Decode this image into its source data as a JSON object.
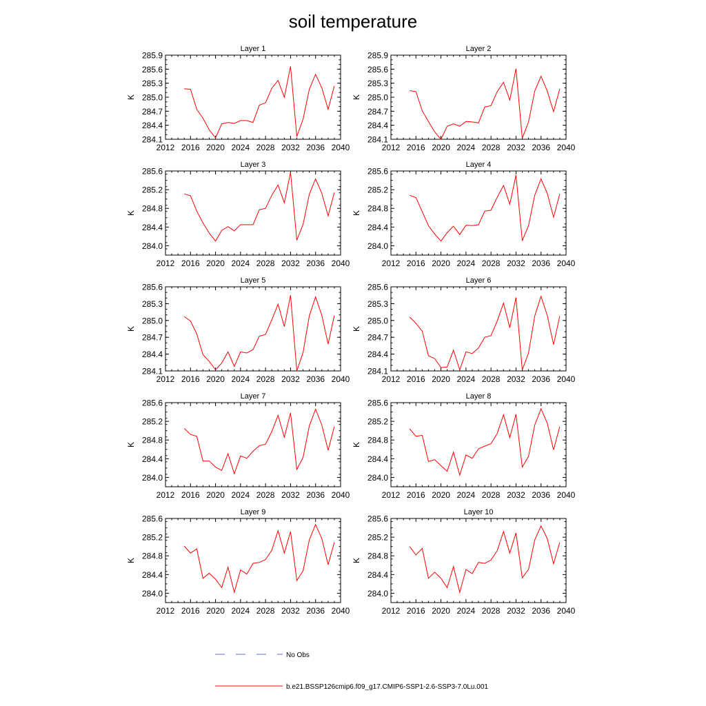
{
  "title": "soil temperature",
  "legend": {
    "obs_label": "No Obs",
    "obs_color": "#5a6fd6",
    "model_label": "b.e21.BSSP126cmip6.f09_g17.CMIP6-SSP1-2.6-SSP3-7.0Lu.001",
    "model_color": "#ff0000"
  },
  "chart_data": [
    {
      "type": "line",
      "title": "Layer 1",
      "ylabel": "K",
      "xlim": [
        2012,
        2040
      ],
      "xticks": [
        "2012",
        "2016",
        "2020",
        "2024",
        "2028",
        "2032",
        "2036",
        "2040"
      ],
      "ylim": [
        284.1,
        285.9
      ],
      "yticks": [
        "284.1",
        "284.4",
        "284.7",
        "285.0",
        "285.3",
        "285.6",
        "285.9"
      ],
      "series": [
        {
          "color": "#ff0000",
          "x": [
            2015,
            2016,
            2017,
            2018,
            2019,
            2020,
            2021,
            2022,
            2023,
            2024,
            2025,
            2026,
            2027,
            2028,
            2029,
            2030,
            2031,
            2032,
            2033,
            2034,
            2035,
            2036,
            2037,
            2038,
            2039
          ],
          "values": [
            285.18,
            285.17,
            284.74,
            284.55,
            284.3,
            284.13,
            284.43,
            284.46,
            284.44,
            284.5,
            284.5,
            284.46,
            284.83,
            284.88,
            285.19,
            285.36,
            285.0,
            285.66,
            284.16,
            284.53,
            285.17,
            285.49,
            285.2,
            284.74,
            285.24
          ]
        }
      ]
    },
    {
      "type": "line",
      "title": "Layer 2",
      "ylabel": "K",
      "xlim": [
        2012,
        2040
      ],
      "xticks": [
        "2012",
        "2016",
        "2020",
        "2024",
        "2028",
        "2032",
        "2036",
        "2040"
      ],
      "ylim": [
        284.1,
        285.9
      ],
      "yticks": [
        "284.1",
        "284.4",
        "284.7",
        "285.0",
        "285.3",
        "285.6",
        "285.9"
      ],
      "series": [
        {
          "color": "#ff0000",
          "x": [
            2015,
            2016,
            2017,
            2018,
            2019,
            2020,
            2021,
            2022,
            2023,
            2024,
            2025,
            2026,
            2027,
            2028,
            2029,
            2030,
            2031,
            2032,
            2033,
            2034,
            2035,
            2036,
            2037,
            2038,
            2039
          ],
          "values": [
            285.14,
            285.12,
            284.71,
            284.48,
            284.26,
            284.1,
            284.38,
            284.43,
            284.38,
            284.48,
            284.47,
            284.45,
            284.79,
            284.82,
            285.12,
            285.32,
            284.94,
            285.61,
            284.12,
            284.47,
            285.13,
            285.45,
            285.13,
            284.69,
            285.18
          ]
        }
      ]
    },
    {
      "type": "line",
      "title": "Layer 3",
      "ylabel": "K",
      "xlim": [
        2012,
        2040
      ],
      "xticks": [
        "2012",
        "2016",
        "2020",
        "2024",
        "2028",
        "2032",
        "2036",
        "2040"
      ],
      "ylim": [
        283.8,
        285.6
      ],
      "yticks": [
        "284.0",
        "284.4",
        "284.8",
        "285.2",
        "285.6"
      ],
      "series": [
        {
          "color": "#ff0000",
          "x": [
            2015,
            2016,
            2017,
            2018,
            2019,
            2020,
            2021,
            2022,
            2023,
            2024,
            2025,
            2026,
            2027,
            2028,
            2029,
            2030,
            2031,
            2032,
            2033,
            2034,
            2035,
            2036,
            2037,
            2038,
            2039
          ],
          "values": [
            285.11,
            285.07,
            284.74,
            284.49,
            284.27,
            284.1,
            284.33,
            284.41,
            284.32,
            284.45,
            284.45,
            284.45,
            284.77,
            284.8,
            285.08,
            285.3,
            284.92,
            285.57,
            284.12,
            284.46,
            285.1,
            285.43,
            285.12,
            284.64,
            285.14
          ]
        }
      ]
    },
    {
      "type": "line",
      "title": "Layer 4",
      "ylabel": "K",
      "xlim": [
        2012,
        2040
      ],
      "xticks": [
        "2012",
        "2016",
        "2020",
        "2024",
        "2028",
        "2032",
        "2036",
        "2040"
      ],
      "ylim": [
        283.8,
        285.6
      ],
      "yticks": [
        "284.0",
        "284.4",
        "284.8",
        "285.2",
        "285.6"
      ],
      "series": [
        {
          "color": "#ff0000",
          "x": [
            2015,
            2016,
            2017,
            2018,
            2019,
            2020,
            2021,
            2022,
            2023,
            2024,
            2025,
            2026,
            2027,
            2028,
            2029,
            2030,
            2031,
            2032,
            2033,
            2034,
            2035,
            2036,
            2037,
            2038,
            2039
          ],
          "values": [
            285.08,
            285.03,
            284.73,
            284.43,
            284.25,
            284.1,
            284.28,
            284.42,
            284.24,
            284.44,
            284.43,
            284.45,
            284.74,
            284.76,
            285.04,
            285.29,
            284.89,
            285.51,
            284.11,
            284.43,
            285.08,
            285.43,
            285.12,
            284.61,
            285.11
          ]
        }
      ]
    },
    {
      "type": "line",
      "title": "Layer 5",
      "ylabel": "K",
      "xlim": [
        2012,
        2040
      ],
      "xticks": [
        "2012",
        "2016",
        "2020",
        "2024",
        "2028",
        "2032",
        "2036",
        "2040"
      ],
      "ylim": [
        284.1,
        285.6
      ],
      "yticks": [
        "284.1",
        "284.4",
        "284.7",
        "285.0",
        "285.3",
        "285.6"
      ],
      "series": [
        {
          "color": "#ff0000",
          "x": [
            2015,
            2016,
            2017,
            2018,
            2019,
            2020,
            2021,
            2022,
            2023,
            2024,
            2025,
            2026,
            2027,
            2028,
            2029,
            2030,
            2031,
            2032,
            2033,
            2034,
            2035,
            2036,
            2037,
            2038,
            2039
          ],
          "values": [
            285.07,
            284.99,
            284.76,
            284.39,
            284.27,
            284.12,
            284.24,
            284.44,
            284.18,
            284.44,
            284.42,
            284.48,
            284.72,
            284.75,
            285.01,
            285.29,
            284.89,
            285.45,
            284.1,
            284.43,
            285.08,
            285.42,
            285.09,
            284.58,
            285.09
          ]
        }
      ]
    },
    {
      "type": "line",
      "title": "Layer 6",
      "ylabel": "K",
      "xlim": [
        2012,
        2040
      ],
      "xticks": [
        "2012",
        "2016",
        "2020",
        "2024",
        "2028",
        "2032",
        "2036",
        "2040"
      ],
      "ylim": [
        284.1,
        285.6
      ],
      "yticks": [
        "284.1",
        "284.4",
        "284.7",
        "285.0",
        "285.3",
        "285.6"
      ],
      "series": [
        {
          "color": "#ff0000",
          "x": [
            2015,
            2016,
            2017,
            2018,
            2019,
            2020,
            2021,
            2022,
            2023,
            2024,
            2025,
            2026,
            2027,
            2028,
            2029,
            2030,
            2031,
            2032,
            2033,
            2034,
            2035,
            2036,
            2037,
            2038,
            2039
          ],
          "values": [
            285.06,
            284.95,
            284.81,
            284.37,
            284.32,
            284.16,
            284.17,
            284.47,
            284.12,
            284.44,
            284.41,
            284.51,
            284.7,
            284.73,
            284.99,
            285.31,
            284.87,
            285.41,
            284.12,
            284.42,
            285.08,
            285.43,
            285.09,
            284.57,
            285.08
          ]
        }
      ]
    },
    {
      "type": "line",
      "title": "Layer 7",
      "ylabel": "K",
      "xlim": [
        2012,
        2040
      ],
      "xticks": [
        "2012",
        "2016",
        "2020",
        "2024",
        "2028",
        "2032",
        "2036",
        "2040"
      ],
      "ylim": [
        283.8,
        285.6
      ],
      "yticks": [
        "284.0",
        "284.4",
        "284.8",
        "285.2",
        "285.6"
      ],
      "series": [
        {
          "color": "#ff0000",
          "x": [
            2015,
            2016,
            2017,
            2018,
            2019,
            2020,
            2021,
            2022,
            2023,
            2024,
            2025,
            2026,
            2027,
            2028,
            2029,
            2030,
            2031,
            2032,
            2033,
            2034,
            2035,
            2036,
            2037,
            2038,
            2039
          ],
          "values": [
            285.05,
            284.92,
            284.88,
            284.35,
            284.35,
            284.22,
            284.15,
            284.51,
            284.08,
            284.46,
            284.41,
            284.56,
            284.68,
            284.71,
            284.98,
            285.33,
            284.86,
            285.38,
            284.17,
            284.43,
            285.1,
            285.46,
            285.12,
            284.58,
            285.09
          ]
        }
      ]
    },
    {
      "type": "line",
      "title": "Layer 8",
      "ylabel": "K",
      "xlim": [
        2012,
        2040
      ],
      "xticks": [
        "2012",
        "2016",
        "2020",
        "2024",
        "2028",
        "2032",
        "2036",
        "2040"
      ],
      "ylim": [
        283.8,
        285.6
      ],
      "yticks": [
        "284.0",
        "284.4",
        "284.8",
        "285.2",
        "285.6"
      ],
      "series": [
        {
          "color": "#ff0000",
          "x": [
            2015,
            2016,
            2017,
            2018,
            2019,
            2020,
            2021,
            2022,
            2023,
            2024,
            2025,
            2026,
            2027,
            2028,
            2029,
            2030,
            2031,
            2032,
            2033,
            2034,
            2035,
            2036,
            2037,
            2038,
            2039
          ],
          "values": [
            285.04,
            284.88,
            284.9,
            284.34,
            284.38,
            284.25,
            284.13,
            284.54,
            284.05,
            284.48,
            284.41,
            284.61,
            284.67,
            284.72,
            284.94,
            285.34,
            284.85,
            285.35,
            284.22,
            284.45,
            285.12,
            285.47,
            285.16,
            284.59,
            285.09
          ]
        }
      ]
    },
    {
      "type": "line",
      "title": "Layer 9",
      "ylabel": "K",
      "xlim": [
        2012,
        2040
      ],
      "xticks": [
        "2012",
        "2016",
        "2020",
        "2024",
        "2028",
        "2032",
        "2036",
        "2040"
      ],
      "ylim": [
        283.8,
        285.6
      ],
      "yticks": [
        "284.0",
        "284.4",
        "284.8",
        "285.2",
        "285.6"
      ],
      "series": [
        {
          "color": "#ff0000",
          "x": [
            2015,
            2016,
            2017,
            2018,
            2019,
            2020,
            2021,
            2022,
            2023,
            2024,
            2025,
            2026,
            2027,
            2028,
            2029,
            2030,
            2031,
            2032,
            2033,
            2034,
            2035,
            2036,
            2037,
            2038,
            2039
          ],
          "values": [
            285.01,
            284.86,
            284.95,
            284.32,
            284.43,
            284.3,
            284.12,
            284.56,
            284.02,
            284.5,
            284.41,
            284.64,
            284.66,
            284.72,
            284.92,
            285.34,
            284.86,
            285.32,
            284.27,
            284.48,
            285.14,
            285.47,
            285.17,
            284.61,
            285.09
          ]
        }
      ]
    },
    {
      "type": "line",
      "title": "Layer 10",
      "ylabel": "K",
      "xlim": [
        2012,
        2040
      ],
      "xticks": [
        "2012",
        "2016",
        "2020",
        "2024",
        "2028",
        "2032",
        "2036",
        "2040"
      ],
      "ylim": [
        283.8,
        285.6
      ],
      "yticks": [
        "284.0",
        "284.4",
        "284.8",
        "285.2",
        "285.6"
      ],
      "series": [
        {
          "color": "#ff0000",
          "x": [
            2015,
            2016,
            2017,
            2018,
            2019,
            2020,
            2021,
            2022,
            2023,
            2024,
            2025,
            2026,
            2027,
            2028,
            2029,
            2030,
            2031,
            2032,
            2033,
            2034,
            2035,
            2036,
            2037,
            2038,
            2039
          ],
          "values": [
            285.0,
            284.82,
            284.96,
            284.32,
            284.45,
            284.32,
            284.12,
            284.57,
            284.02,
            284.51,
            284.42,
            284.66,
            284.64,
            284.71,
            284.91,
            285.32,
            284.86,
            285.29,
            284.33,
            284.51,
            285.14,
            285.44,
            285.17,
            284.63,
            285.09
          ]
        }
      ]
    }
  ]
}
